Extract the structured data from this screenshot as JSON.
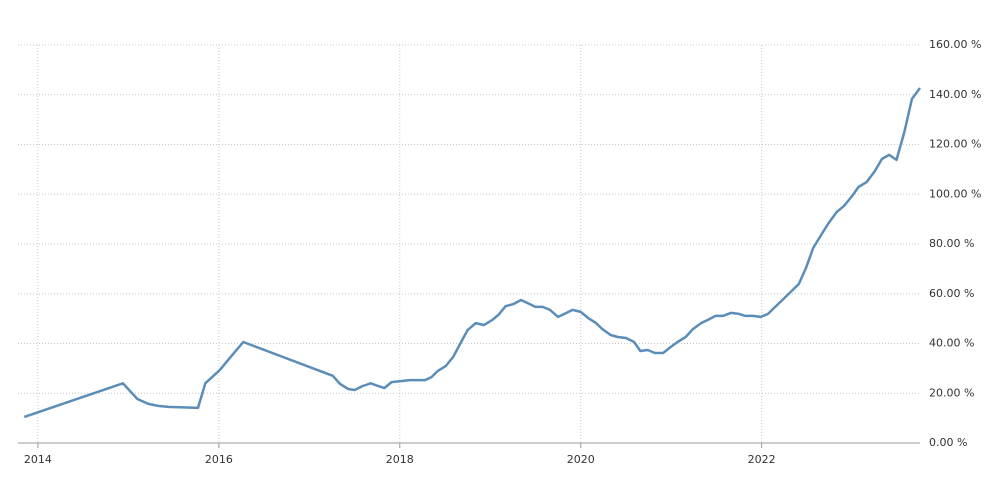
{
  "chart_data": {
    "type": "line",
    "x": [
      2013.85,
      2014.94,
      2015.1,
      2015.22,
      2015.33,
      2015.44,
      2015.77,
      2015.85,
      2016.01,
      2016.14,
      2016.27,
      2017.26,
      2017.34,
      2017.43,
      2017.5,
      2017.59,
      2017.68,
      2017.76,
      2017.83,
      2017.91,
      2018.11,
      2018.28,
      2018.35,
      2018.42,
      2018.51,
      2018.59,
      2018.66,
      2018.75,
      2018.84,
      2018.93,
      2019.02,
      2019.09,
      2019.17,
      2019.26,
      2019.34,
      2019.41,
      2019.5,
      2019.58,
      2019.66,
      2019.75,
      2019.82,
      2019.91,
      2020.0,
      2020.08,
      2020.17,
      2020.24,
      2020.33,
      2020.41,
      2020.5,
      2020.59,
      2020.66,
      2020.74,
      2020.82,
      2020.91,
      2020.98,
      2021.07,
      2021.16,
      2021.24,
      2021.33,
      2021.4,
      2021.49,
      2021.57,
      2021.66,
      2021.75,
      2021.82,
      2021.9,
      2021.99,
      2022.07,
      2022.15,
      2022.24,
      2022.32,
      2022.41,
      2022.49,
      2022.57,
      2022.65,
      2022.74,
      2022.83,
      2022.91,
      2023.0,
      2023.07,
      2023.16,
      2023.25,
      2023.33,
      2023.41,
      2023.49,
      2023.58,
      2023.66,
      2023.75
    ],
    "series": [
      {
        "color": "#5b8db8",
        "values": [
          10.5,
          24,
          17.7,
          15.7,
          14.9,
          14.5,
          14.1,
          24,
          29.3,
          35,
          40.6,
          27,
          23.7,
          21.7,
          21.3,
          22.9,
          24,
          22.9,
          22.1,
          24.5,
          25.3,
          25.3,
          26.5,
          29,
          31,
          34.6,
          39.4,
          45.4,
          48.2,
          47.4,
          49.4,
          51.5,
          55,
          55.9,
          57.5,
          56.3,
          54.7,
          54.7,
          53.5,
          50.7,
          51.9,
          53.5,
          52.7,
          50.3,
          48.2,
          45.8,
          43.4,
          42.6,
          42.2,
          40.6,
          37,
          37.4,
          36.2,
          36.2,
          38.2,
          40.6,
          42.6,
          45.8,
          48.2,
          49.4,
          51.1,
          51.1,
          52.3,
          51.9,
          51.1,
          51.1,
          50.7,
          51.9,
          54.7,
          57.9,
          60.7,
          63.9,
          70.4,
          78.4,
          83.2,
          88.4,
          92.9,
          95.3,
          99.3,
          102.9,
          104.9,
          109.3,
          114.2,
          115.8,
          113.8,
          125.4,
          138.3,
          142.7
        ]
      }
    ],
    "xlim": [
      2013.78,
      2023.75
    ],
    "xticks": [
      2014,
      2016,
      2018,
      2020,
      2022
    ],
    "ylim": [
      0,
      160
    ],
    "yticks": [
      {
        "value": 0,
        "label": "0.00 %"
      },
      {
        "value": 20,
        "label": "20.00 %"
      },
      {
        "value": 40,
        "label": "40.00 %"
      },
      {
        "value": 60,
        "label": "60.00 %"
      },
      {
        "value": 80,
        "label": "80.00 %"
      },
      {
        "value": 100,
        "label": "100.00 %"
      },
      {
        "value": 120,
        "label": "120.00 %"
      },
      {
        "value": 140,
        "label": "140.00 %"
      },
      {
        "value": 160,
        "label": "160.00 %"
      }
    ],
    "grid": true
  }
}
